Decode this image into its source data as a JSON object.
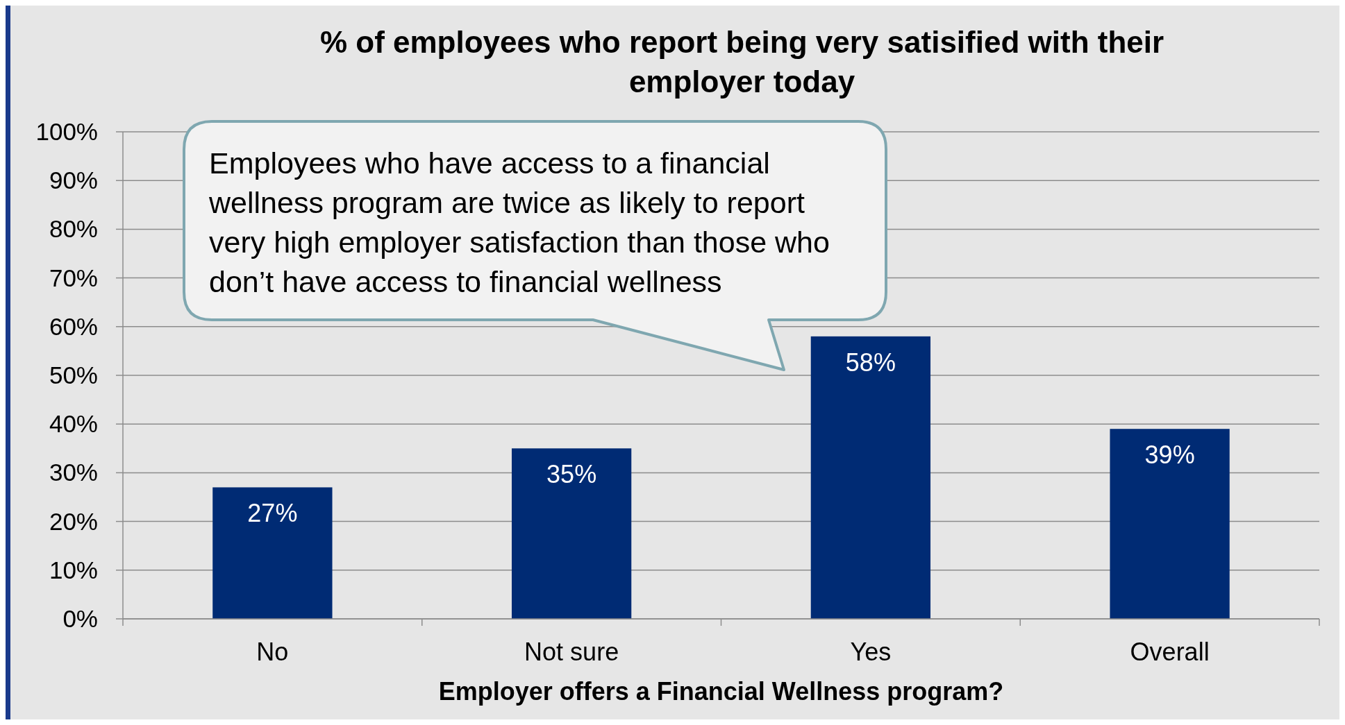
{
  "chart_data": {
    "type": "bar",
    "title": "% of employees who report being  very satisified with their employer today",
    "xlabel": "Employer offers a Financial Wellness program?",
    "categories": [
      "No",
      "Not sure",
      "Yes",
      "Overall"
    ],
    "values": [
      27,
      35,
      58,
      39
    ],
    "color": "#002b74",
    "ylim": [
      0,
      100
    ],
    "yticks": [
      {
        "value": 0,
        "label": "0%"
      },
      {
        "value": 10,
        "label": "10%"
      },
      {
        "value": 20,
        "label": "20%"
      },
      {
        "value": 30,
        "label": "30%"
      },
      {
        "value": 40,
        "label": "40%"
      },
      {
        "value": 50,
        "label": "50%"
      },
      {
        "value": 60,
        "label": "60%"
      },
      {
        "value": 70,
        "label": "70%"
      },
      {
        "value": 80,
        "label": "80%"
      },
      {
        "value": 90,
        "label": "90%"
      },
      {
        "value": 100,
        "label": "100%"
      }
    ],
    "grid": "y",
    "value_labels": [
      "27%",
      "35%",
      "58%",
      "39%"
    ],
    "annotations": [
      "Employees who have access to a financial wellness program are twice as likely to report very high employer satisfaction than those who don’t have access to financial wellness"
    ]
  }
}
